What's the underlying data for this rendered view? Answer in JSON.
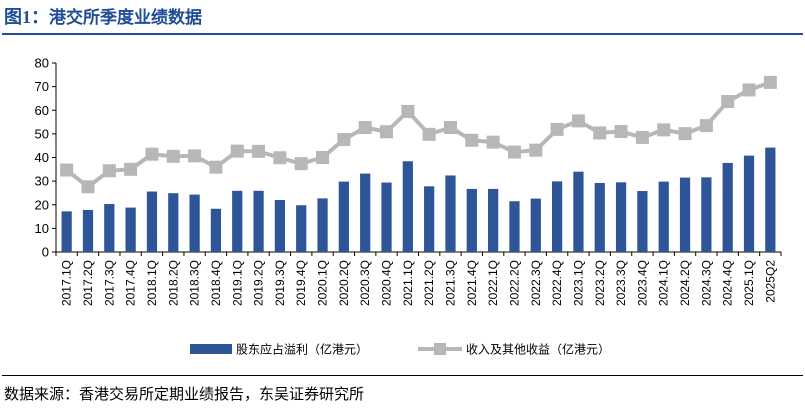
{
  "header": {
    "figure_label": "图1：",
    "title": "港交所季度业绩数据"
  },
  "footer": {
    "source": "数据来源：香港交易所定期业绩报告，东吴证券研究所"
  },
  "chart_data": {
    "type": "bar",
    "title": "",
    "xlabel": "",
    "ylabel": "",
    "ylim": [
      0,
      80
    ],
    "yticks": [
      0,
      10,
      20,
      30,
      40,
      50,
      60,
      70,
      80
    ],
    "grid": false,
    "legend_position": "bottom",
    "categories": [
      "2017.1Q",
      "2017.2Q",
      "2017.3Q",
      "2017.4Q",
      "2018.1Q",
      "2018.2Q",
      "2018.3Q",
      "2018.4Q",
      "2019.1Q",
      "2019.2Q",
      "2019.3Q",
      "2019.4Q",
      "2020.1Q",
      "2020.2Q",
      "2020.3Q",
      "2020.4Q",
      "2021.1Q",
      "2021.2Q",
      "2021.3Q",
      "2021.4Q",
      "2022.1Q",
      "2022.2Q",
      "2022.3Q",
      "2022.4Q",
      "2023.1Q",
      "2023.2Q",
      "2023.3Q",
      "2023.4Q",
      "2024.1Q",
      "2024.2Q",
      "2024.3Q",
      "2024.4Q",
      "2025.1Q",
      "2025Q2"
    ],
    "series": [
      {
        "name": "股东应占溢利（亿港元）",
        "type": "bar",
        "color": "#2e5597",
        "values": [
          17.2,
          17.8,
          20.3,
          18.8,
          25.6,
          24.9,
          24.3,
          18.3,
          25.9,
          25.9,
          22.0,
          19.8,
          22.7,
          29.8,
          33.2,
          29.4,
          38.4,
          27.8,
          32.4,
          26.7,
          26.7,
          21.5,
          22.6,
          29.9,
          34.0,
          29.2,
          29.5,
          25.8,
          29.8,
          31.5,
          31.6,
          37.7,
          40.8,
          44.2
        ]
      },
      {
        "name": "收入及其他收益（亿港元）",
        "type": "line",
        "color": "#b7b7b7",
        "values": [
          34.7,
          27.6,
          34.4,
          35.0,
          41.4,
          40.5,
          40.7,
          35.9,
          42.7,
          42.6,
          39.9,
          37.4,
          40.0,
          47.6,
          52.7,
          50.9,
          59.5,
          49.8,
          52.7,
          47.3,
          46.5,
          42.3,
          43.1,
          51.9,
          55.5,
          50.4,
          51.0,
          48.5,
          51.7,
          50.1,
          53.5,
          63.7,
          68.6,
          71.8
        ]
      }
    ]
  }
}
